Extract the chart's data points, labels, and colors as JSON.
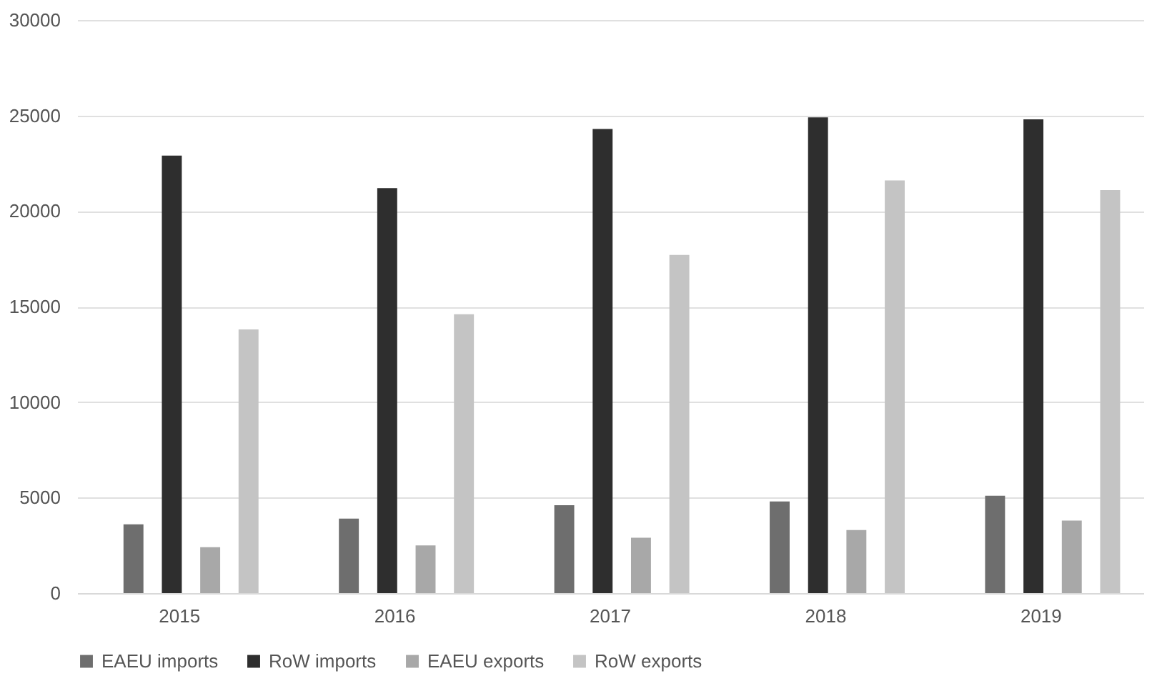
{
  "chart_data": {
    "type": "bar",
    "categories": [
      "2015",
      "2016",
      "2017",
      "2018",
      "2019"
    ],
    "series": [
      {
        "name": "EAEU imports",
        "color": "#6e6e6e",
        "values": [
          3600,
          3900,
          4600,
          4800,
          5100
        ]
      },
      {
        "name": "RoW imports",
        "color": "#2e2e2e",
        "values": [
          22900,
          21200,
          24300,
          24900,
          24800
        ]
      },
      {
        "name": "EAEU exports",
        "color": "#a8a8a8",
        "values": [
          2400,
          2500,
          2900,
          3300,
          3800
        ]
      },
      {
        "name": "RoW exports",
        "color": "#c4c4c4",
        "values": [
          13800,
          14600,
          17700,
          21600,
          21100
        ]
      }
    ],
    "ylim": [
      0,
      30000
    ],
    "yticks": [
      0,
      5000,
      10000,
      15000,
      20000,
      25000,
      30000
    ],
    "grid": "y",
    "legend": "bottom"
  }
}
